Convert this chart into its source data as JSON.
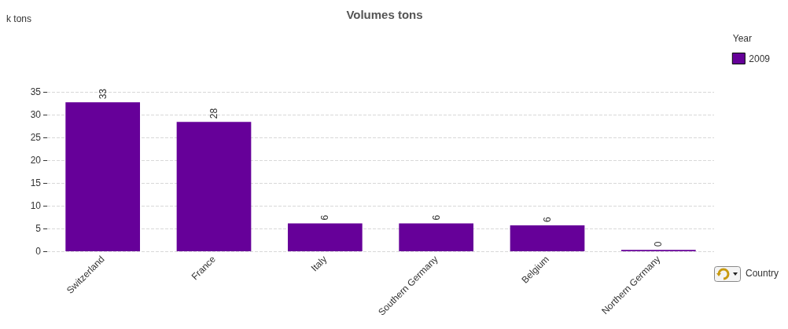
{
  "chart_data": {
    "type": "bar",
    "title": "Volumes tons",
    "annotations": [
      "k tons"
    ],
    "xlabel": "Country",
    "legend_title": "Year",
    "categories": [
      "Switzerland",
      "France",
      "Italy",
      "Southern Germany",
      "Belgium",
      "Northern Germany"
    ],
    "series": [
      {
        "name": "2009",
        "color": "#660099",
        "values": [
          32.7,
          28.4,
          6.1,
          6.1,
          5.7,
          0.3
        ],
        "value_labels": [
          "33",
          "28",
          "6",
          "6",
          "6",
          "0"
        ]
      }
    ],
    "ylim": [
      0,
      35
    ],
    "yticks": [
      0,
      5,
      10,
      15,
      20,
      25,
      30,
      35
    ],
    "grid": "y",
    "legend": "top right"
  }
}
